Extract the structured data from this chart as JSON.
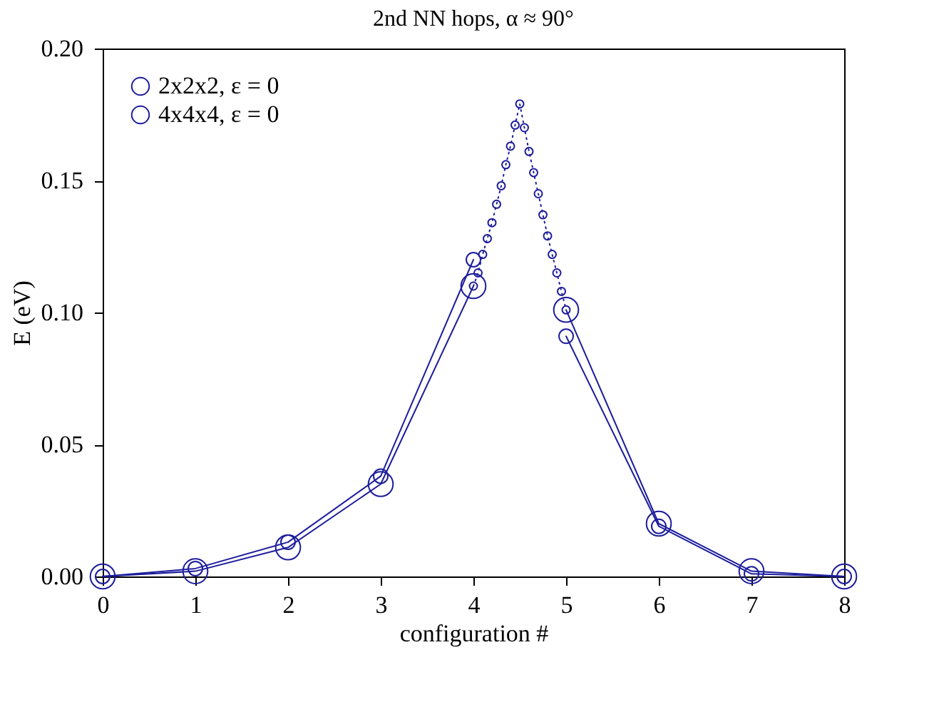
{
  "chart_data": {
    "type": "line",
    "title": "2nd NN hops, α ≈ 90°",
    "xlabel": "configuration #",
    "ylabel": "E (eV)",
    "x": [
      0,
      1,
      2,
      3,
      4,
      4.5,
      5,
      6,
      7,
      8
    ],
    "series": [
      {
        "name": "2x2x2, ε = 0",
        "color": "#1c1c9c",
        "values": [
          0,
          0.002,
          0.011,
          0.035,
          0.11,
          null,
          0.101,
          0.02,
          0.002,
          0
        ]
      },
      {
        "name": "4x4x4, ε = 0",
        "color": "#1d1d9d",
        "values": [
          0,
          0.003,
          0.013,
          0.038,
          0.12,
          null,
          0.091,
          0.019,
          0.001,
          0
        ]
      },
      {
        "color": "#1c1c9c",
        "line_style": "dotted",
        "x": [
          4.0,
          4.05,
          4.1,
          4.15,
          4.2,
          4.25,
          4.3,
          4.35,
          4.4,
          4.45,
          4.5,
          4.55,
          4.6,
          4.65,
          4.7,
          4.75,
          4.8,
          4.85,
          4.9,
          4.95,
          5.0
        ],
        "values": [
          0.11,
          0.115,
          0.122,
          0.128,
          0.134,
          0.141,
          0.148,
          0.156,
          0.163,
          0.171,
          0.179,
          0.17,
          0.161,
          0.153,
          0.145,
          0.137,
          0.129,
          0.122,
          0.115,
          0.108,
          0.101
        ]
      }
    ],
    "xlim": [
      0,
      8
    ],
    "xticks": [
      0,
      1,
      2,
      3,
      4,
      5,
      6,
      7,
      8
    ],
    "ylim": [
      0,
      0.2
    ],
    "yticks": [
      {
        "value": 0,
        "label": "0.00"
      },
      {
        "value": 0.05,
        "label": "0.05"
      },
      {
        "value": 0.1,
        "label": "0.10"
      },
      {
        "value": 0.15,
        "label": "0.15"
      },
      {
        "value": 0.2,
        "label": "0.20"
      }
    ],
    "marker": "circle",
    "line_style": "solid",
    "legend": "top left",
    "grid": false
  }
}
